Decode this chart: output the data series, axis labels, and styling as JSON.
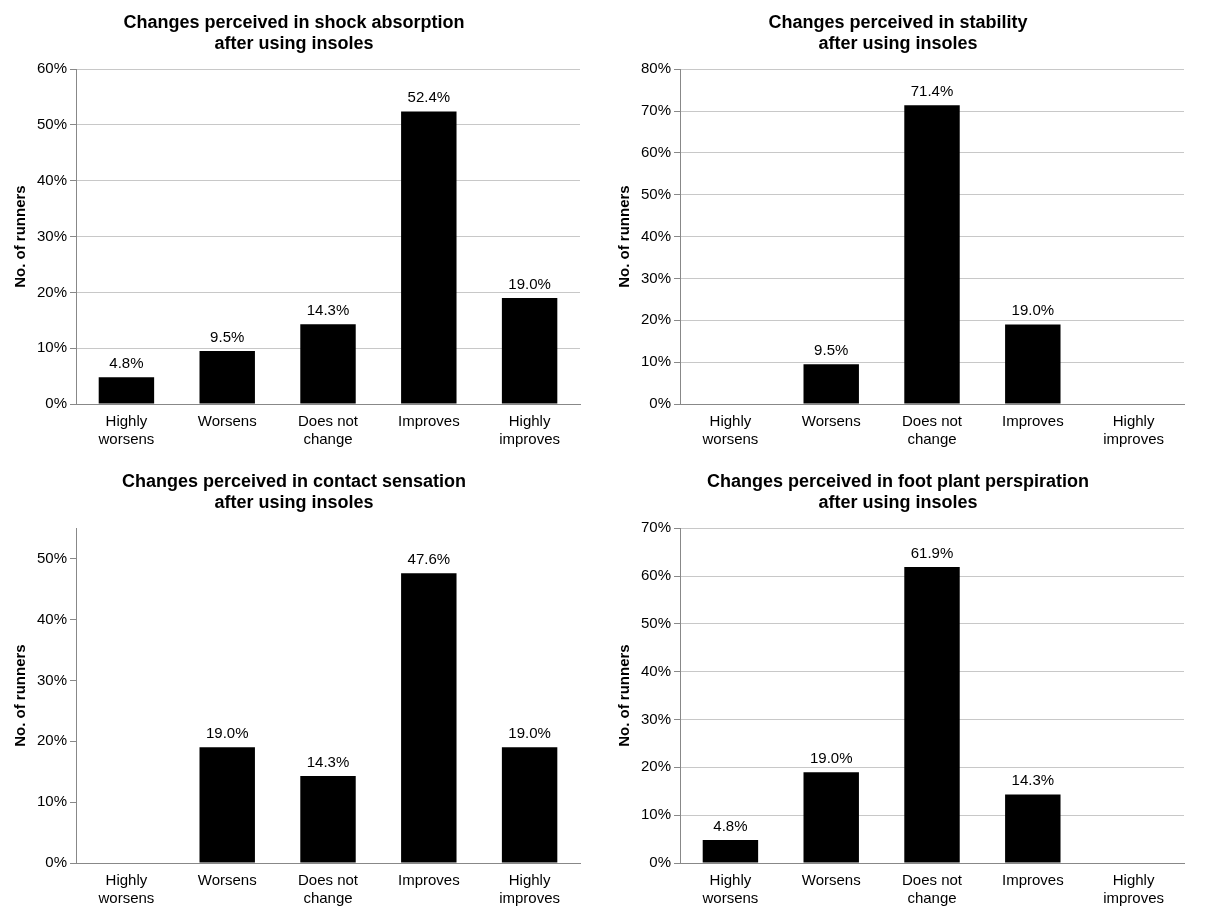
{
  "chart_data": [
    {
      "type": "bar",
      "title": "Changes perceived in shock absorption\nafter using insoles",
      "ylabel": "No. of runners",
      "categories": [
        "Highly worsens",
        "Worsens",
        "Does not change",
        "Improves",
        "Highly improves"
      ],
      "values": [
        4.8,
        9.5,
        14.3,
        52.4,
        19.0
      ],
      "value_labels": [
        "4.8%",
        "9.5%",
        "14.3%",
        "52.4%",
        "19.0%"
      ],
      "color": "#000000",
      "ylim": [
        0,
        60
      ],
      "yticks": [
        {
          "value": 0,
          "label": "0%"
        },
        {
          "value": 10,
          "label": "10%"
        },
        {
          "value": 20,
          "label": "20%"
        },
        {
          "value": 30,
          "label": "30%"
        },
        {
          "value": 40,
          "label": "40%"
        },
        {
          "value": 50,
          "label": "50%"
        },
        {
          "value": 60,
          "label": "60%"
        }
      ],
      "grid": "y",
      "legend": false
    },
    {
      "type": "bar",
      "title": "Changes perceived in stability\nafter using insoles",
      "ylabel": "No. of runners",
      "categories": [
        "Highly worsens",
        "Worsens",
        "Does not change",
        "Improves",
        "Highly improves"
      ],
      "values": [
        0,
        9.5,
        71.4,
        19.0,
        0
      ],
      "value_labels": [
        null,
        "9.5%",
        "71.4%",
        "19.0%",
        null
      ],
      "color": "#000000",
      "ylim": [
        0,
        80
      ],
      "yticks": [
        {
          "value": 0,
          "label": "0%"
        },
        {
          "value": 10,
          "label": "10%"
        },
        {
          "value": 20,
          "label": "20%"
        },
        {
          "value": 30,
          "label": "30%"
        },
        {
          "value": 40,
          "label": "40%"
        },
        {
          "value": 50,
          "label": "50%"
        },
        {
          "value": 60,
          "label": "60%"
        },
        {
          "value": 70,
          "label": "70%"
        },
        {
          "value": 80,
          "label": "80%"
        }
      ],
      "grid": "y",
      "legend": false
    },
    {
      "type": "bar",
      "title": "Changes perceived in contact sensation\nafter using insoles",
      "ylabel": "No. of runners",
      "categories": [
        "Highly worsens",
        "Worsens",
        "Does not change",
        "Improves",
        "Highly improves"
      ],
      "values": [
        0,
        19.0,
        14.3,
        47.6,
        19.0
      ],
      "value_labels": [
        null,
        "19.0%",
        "14.3%",
        "47.6%",
        "19.0%"
      ],
      "color": "#000000",
      "ylim": [
        0,
        55
      ],
      "yticks": [
        {
          "value": 0,
          "label": "0%"
        },
        {
          "value": 10,
          "label": "10%"
        },
        {
          "value": 20,
          "label": "20%"
        },
        {
          "value": 30,
          "label": "30%"
        },
        {
          "value": 40,
          "label": "40%"
        },
        {
          "value": 50,
          "label": "50%"
        }
      ],
      "grid": false,
      "legend": false
    },
    {
      "type": "bar",
      "title": "Changes perceived in foot plant perspiration\nafter using insoles",
      "ylabel": "No. of runners",
      "categories": [
        "Highly worsens",
        "Worsens",
        "Does not change",
        "Improves",
        "Highly improves"
      ],
      "values": [
        4.8,
        19.0,
        61.9,
        14.3,
        0
      ],
      "value_labels": [
        "4.8%",
        "19.0%",
        "61.9%",
        "14.3%",
        null
      ],
      "color": "#000000",
      "ylim": [
        0,
        70
      ],
      "yticks": [
        {
          "value": 0,
          "label": "0%"
        },
        {
          "value": 10,
          "label": "10%"
        },
        {
          "value": 20,
          "label": "20%"
        },
        {
          "value": 30,
          "label": "30%"
        },
        {
          "value": 40,
          "label": "40%"
        },
        {
          "value": 50,
          "label": "50%"
        },
        {
          "value": 60,
          "label": "60%"
        },
        {
          "value": 70,
          "label": "70%"
        }
      ],
      "grid": "y",
      "legend": false
    }
  ]
}
